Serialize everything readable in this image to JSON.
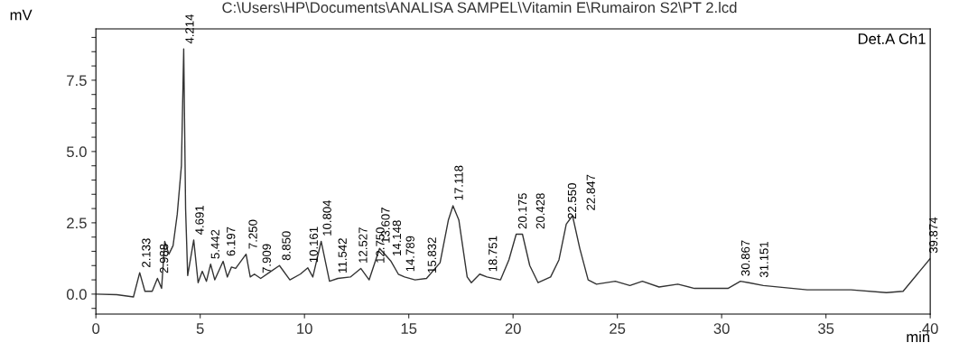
{
  "chart_data": {
    "type": "line",
    "title": "C:\\Users\\HP\\Documents\\ANALISA SAMPEL\\Vitamin E\\Rumairon S2\\PT 2.lcd",
    "xlabel": "min",
    "ylabel": "mV",
    "x": [
      0,
      1.0,
      1.8,
      2.1,
      2.35,
      2.7,
      2.95,
      3.15,
      3.3,
      3.5,
      3.7,
      3.9,
      4.1,
      4.21,
      4.3,
      4.4,
      4.69,
      4.9,
      5.1,
      5.3,
      5.5,
      5.7,
      6.1,
      6.3,
      6.5,
      6.7,
      7.2,
      7.4,
      7.6,
      7.9,
      8.3,
      8.8,
      9.3,
      9.8,
      10.16,
      10.4,
      10.8,
      11.2,
      11.6,
      12.2,
      12.7,
      13.1,
      13.6,
      14.15,
      14.5,
      14.8,
      15.3,
      15.85,
      16.5,
      16.9,
      17.12,
      17.4,
      17.8,
      18.0,
      18.4,
      18.75,
      19.4,
      19.8,
      20.15,
      20.45,
      20.8,
      21.2,
      21.8,
      22.2,
      22.55,
      22.85,
      23.2,
      23.6,
      24.0,
      24.9,
      25.6,
      26.2,
      27.0,
      27.9,
      28.7,
      29.5,
      30.3,
      30.9,
      31.3,
      32.0,
      34.1,
      36.2,
      37.9,
      38.7,
      40
    ],
    "series": [
      {
        "color": "#333333",
        "values": [
          0,
          -0.02,
          -0.1,
          0.75,
          0.1,
          0.1,
          0.55,
          0.2,
          1.85,
          1.4,
          1.7,
          2.8,
          4.5,
          8.6,
          3.0,
          0.65,
          1.9,
          0.4,
          0.8,
          0.45,
          1.05,
          0.5,
          1.15,
          0.6,
          0.95,
          0.9,
          1.4,
          0.6,
          0.7,
          0.55,
          0.75,
          1.0,
          0.5,
          0.7,
          0.92,
          0.6,
          1.85,
          0.45,
          0.55,
          0.6,
          0.9,
          0.5,
          1.6,
          1.15,
          0.7,
          0.6,
          0.5,
          0.55,
          1.1,
          2.6,
          3.1,
          2.6,
          0.6,
          0.4,
          0.7,
          0.6,
          0.5,
          1.2,
          2.1,
          2.1,
          1.0,
          0.4,
          0.6,
          1.2,
          2.45,
          2.75,
          1.6,
          0.5,
          0.35,
          0.45,
          0.3,
          0.45,
          0.25,
          0.35,
          0.2,
          0.2,
          0.2,
          0.45,
          0.4,
          0.3,
          0.15,
          0.15,
          0.05,
          0.1,
          1.25
        ]
      }
    ],
    "annotations": [
      "Det.A Ch1",
      {
        "text": "2.133",
        "x": 2.133,
        "y": 0.75
      },
      {
        "text": "2.988",
        "x": 2.988,
        "y": 0.55
      },
      {
        "text": "4.214",
        "x": 4.214,
        "y": 8.6
      },
      {
        "text": "4.691",
        "x": 4.691,
        "y": 1.9
      },
      {
        "text": "5.442",
        "x": 5.442,
        "y": 1.05
      },
      {
        "text": "6.197",
        "x": 6.197,
        "y": 1.15
      },
      {
        "text": "7.250",
        "x": 7.25,
        "y": 1.4
      },
      {
        "text": "7.909",
        "x": 7.909,
        "y": 0.55
      },
      {
        "text": "8.850",
        "x": 8.85,
        "y": 1.0
      },
      {
        "text": "10.161",
        "x": 10.161,
        "y": 0.92
      },
      {
        "text": "10.804",
        "x": 10.804,
        "y": 1.85
      },
      {
        "text": "11.542",
        "x": 11.542,
        "y": 0.55
      },
      {
        "text": "12.527",
        "x": 12.527,
        "y": 0.9
      },
      {
        "text": "12.750",
        "x": 12.75,
        "y": 0.9
      },
      {
        "text": "13.607",
        "x": 13.607,
        "y": 1.6
      },
      {
        "text": "14.148",
        "x": 14.148,
        "y": 1.15
      },
      {
        "text": "14.789",
        "x": 14.789,
        "y": 0.6
      },
      {
        "text": "15.832",
        "x": 15.832,
        "y": 0.55
      },
      {
        "text": "17.118",
        "x": 17.118,
        "y": 3.1
      },
      {
        "text": "18.751",
        "x": 18.751,
        "y": 0.6
      },
      {
        "text": "20.175",
        "x": 20.175,
        "y": 2.1
      },
      {
        "text": "20.428",
        "x": 20.428,
        "y": 2.1
      },
      {
        "text": "22.550",
        "x": 22.55,
        "y": 2.45
      },
      {
        "text": "22.847",
        "x": 22.847,
        "y": 2.75
      },
      {
        "text": "30.867",
        "x": 30.867,
        "y": 0.45
      },
      {
        "text": "31.151",
        "x": 31.151,
        "y": 0.4
      },
      {
        "text": "39.874",
        "x": 39.874,
        "y": 1.25
      }
    ],
    "xlim": [
      0,
      40
    ],
    "xticks": [
      0,
      5,
      10,
      15,
      20,
      25,
      30,
      35,
      40
    ],
    "ylim": [
      -0.7,
      9.3
    ],
    "yticks": [
      {
        "value": -0.5,
        "label": null
      },
      {
        "value": 0.0,
        "label": "0.0"
      },
      {
        "value": 0.5,
        "label": null
      },
      {
        "value": 1.0,
        "label": null
      },
      {
        "value": 1.5,
        "label": null
      },
      {
        "value": 2.0,
        "label": null
      },
      2.5,
      {
        "value": 3.0,
        "label": null
      },
      {
        "value": 3.5,
        "label": null
      },
      {
        "value": 4.0,
        "label": null
      },
      {
        "value": 4.5,
        "label": null
      },
      {
        "value": 5.0,
        "label": "5.0"
      },
      {
        "value": 5.5,
        "label": null
      },
      {
        "value": 6.0,
        "label": null
      },
      {
        "value": 6.5,
        "label": null
      },
      {
        "value": 7.0,
        "label": null
      },
      7.5,
      {
        "value": 8.0,
        "label": null
      },
      {
        "value": 8.5,
        "label": null
      },
      {
        "value": 9.0,
        "label": null
      }
    ],
    "grid": false,
    "legend": false,
    "marker": "none",
    "line_style": "solid"
  }
}
